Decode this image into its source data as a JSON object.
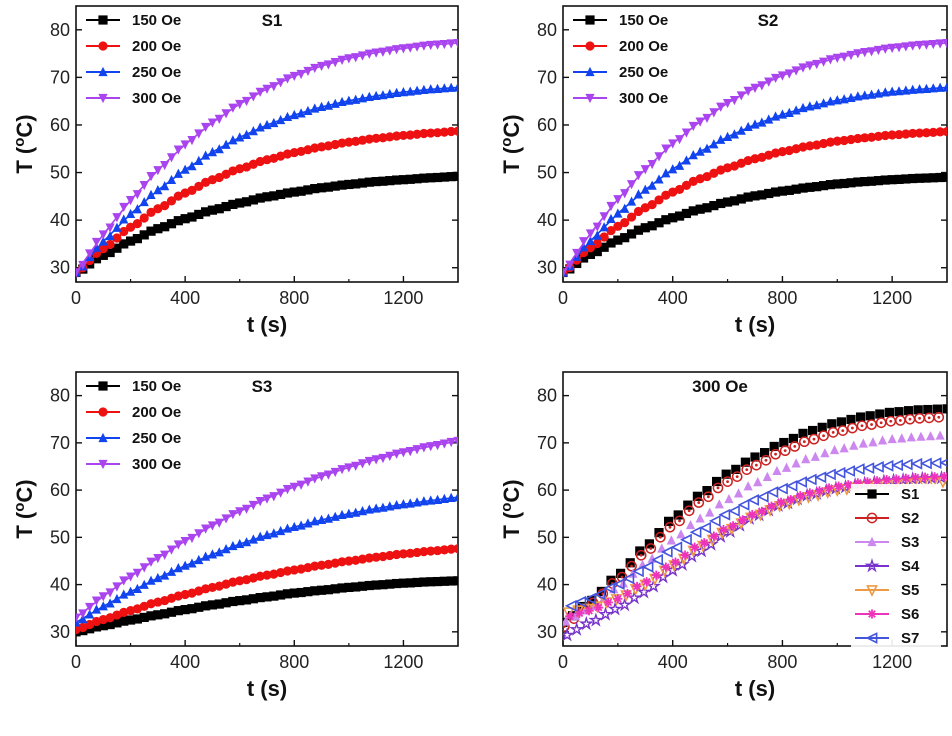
{
  "figure": {
    "panels": [
      "S1",
      "S2",
      "S3",
      "300 Oe"
    ]
  },
  "chart_data": [
    {
      "type": "line",
      "title": "S1",
      "xlabel": "t (s)",
      "ylabel": "T (oC)",
      "xlim": [
        0,
        1400
      ],
      "ylim": [
        27,
        85
      ],
      "xticks": [
        "0",
        "400",
        "800",
        "1200"
      ],
      "yticks": [
        "30",
        "40",
        "50",
        "60",
        "70",
        "80"
      ],
      "legend_position": "top-left",
      "grid": false,
      "series": [
        {
          "name": "150 Oe",
          "color": "#000000",
          "marker": "square",
          "x": [
            0,
            100,
            200,
            300,
            400,
            500,
            600,
            700,
            800,
            900,
            1000,
            1100,
            1200,
            1300,
            1400
          ],
          "y": [
            29,
            32.6,
            35.6,
            38.2,
            40.3,
            42.1,
            43.6,
            44.9,
            45.9,
            46.8,
            47.5,
            48.1,
            48.5,
            48.9,
            49.2
          ]
        },
        {
          "name": "200 Oe",
          "color": "#ee1111",
          "marker": "circle",
          "x": [
            0,
            100,
            200,
            300,
            400,
            500,
            600,
            700,
            800,
            900,
            1000,
            1100,
            1200,
            1300,
            1400
          ],
          "y": [
            29,
            34,
            38.5,
            42.4,
            45.7,
            48.5,
            50.8,
            52.7,
            54.2,
            55.4,
            56.4,
            57.2,
            57.8,
            58.3,
            58.7
          ]
        },
        {
          "name": "250 Oe",
          "color": "#1144ee",
          "marker": "triangle-up",
          "x": [
            0,
            100,
            200,
            300,
            400,
            500,
            600,
            700,
            800,
            900,
            1000,
            1100,
            1200,
            1300,
            1400
          ],
          "y": [
            29,
            35.5,
            41.3,
            46.3,
            50.6,
            54.3,
            57.4,
            60,
            62.1,
            63.8,
            65.1,
            66.1,
            66.9,
            67.5,
            67.9
          ]
        },
        {
          "name": "300 Oe",
          "color": "#aa44ee",
          "marker": "triangle-down",
          "x": [
            0,
            100,
            200,
            300,
            400,
            500,
            600,
            700,
            800,
            900,
            1000,
            1100,
            1200,
            1300,
            1400
          ],
          "y": [
            29,
            37,
            44.2,
            50.5,
            55.9,
            60.5,
            64.4,
            67.6,
            70.3,
            72.4,
            74,
            75.2,
            76.1,
            76.8,
            77.2
          ]
        }
      ]
    },
    {
      "type": "line",
      "title": "S2",
      "xlabel": "t (s)",
      "ylabel": "T (oC)",
      "xlim": [
        0,
        1400
      ],
      "ylim": [
        27,
        85
      ],
      "xticks": [
        "0",
        "400",
        "800",
        "1200"
      ],
      "yticks": [
        "30",
        "40",
        "50",
        "60",
        "70",
        "80"
      ],
      "legend_position": "top-left",
      "grid": false,
      "series": [
        {
          "name": "150 Oe",
          "color": "#000000",
          "marker": "square",
          "x": [
            0,
            100,
            200,
            300,
            400,
            500,
            600,
            700,
            800,
            900,
            1000,
            1100,
            1200,
            1300,
            1400
          ],
          "y": [
            29,
            32.8,
            35.8,
            38.4,
            40.5,
            42.3,
            43.8,
            45.1,
            46.1,
            46.9,
            47.6,
            48.1,
            48.5,
            48.8,
            49
          ]
        },
        {
          "name": "200 Oe",
          "color": "#ee1111",
          "marker": "circle",
          "x": [
            0,
            100,
            200,
            300,
            400,
            500,
            600,
            700,
            800,
            900,
            1000,
            1100,
            1200,
            1300,
            1400
          ],
          "y": [
            29,
            34.2,
            38.7,
            42.6,
            45.9,
            48.7,
            51,
            52.9,
            54.4,
            55.6,
            56.6,
            57.3,
            57.9,
            58.3,
            58.6
          ]
        },
        {
          "name": "250 Oe",
          "color": "#1144ee",
          "marker": "triangle-up",
          "x": [
            0,
            100,
            200,
            300,
            400,
            500,
            600,
            700,
            800,
            900,
            1000,
            1100,
            1200,
            1300,
            1400
          ],
          "y": [
            29,
            35.6,
            41.4,
            46.4,
            50.7,
            54.4,
            57.5,
            60.1,
            62.2,
            63.9,
            65.2,
            66.2,
            67,
            67.5,
            67.9
          ]
        },
        {
          "name": "300 Oe",
          "color": "#aa44ee",
          "marker": "triangle-down",
          "x": [
            0,
            100,
            200,
            300,
            400,
            500,
            600,
            700,
            800,
            900,
            1000,
            1100,
            1200,
            1300,
            1400
          ],
          "y": [
            29,
            37.2,
            44.4,
            50.7,
            56.1,
            60.7,
            64.6,
            67.8,
            70.4,
            72.5,
            74.1,
            75.3,
            76.2,
            76.8,
            77.2
          ]
        }
      ]
    },
    {
      "type": "line",
      "title": "S3",
      "xlabel": "t (s)",
      "ylabel": "T (oC)",
      "xlim": [
        0,
        1400
      ],
      "ylim": [
        27,
        85
      ],
      "xticks": [
        "0",
        "400",
        "800",
        "1200"
      ],
      "yticks": [
        "30",
        "40",
        "50",
        "60",
        "70",
        "80"
      ],
      "legend_position": "top-left",
      "grid": false,
      "series": [
        {
          "name": "150 Oe",
          "color": "#000000",
          "marker": "square",
          "x": [
            0,
            100,
            200,
            300,
            400,
            500,
            600,
            700,
            800,
            900,
            1000,
            1100,
            1200,
            1300,
            1400
          ],
          "y": [
            30,
            31.3,
            32.5,
            33.6,
            34.7,
            35.7,
            36.6,
            37.4,
            38.2,
            38.8,
            39.4,
            39.9,
            40.3,
            40.6,
            40.8
          ]
        },
        {
          "name": "200 Oe",
          "color": "#ee1111",
          "marker": "circle",
          "x": [
            0,
            100,
            200,
            300,
            400,
            500,
            600,
            700,
            800,
            900,
            1000,
            1100,
            1200,
            1300,
            1400
          ],
          "y": [
            30.5,
            32.6,
            34.5,
            36.3,
            37.9,
            39.4,
            40.8,
            42,
            43.1,
            44.1,
            45,
            45.8,
            46.5,
            47.1,
            47.6
          ]
        },
        {
          "name": "250 Oe",
          "color": "#1144ee",
          "marker": "triangle-up",
          "x": [
            0,
            100,
            200,
            300,
            400,
            500,
            600,
            700,
            800,
            900,
            1000,
            1100,
            1200,
            1300,
            1400
          ],
          "y": [
            32,
            35.4,
            38.5,
            41.4,
            44,
            46.4,
            48.6,
            50.5,
            52.2,
            53.7,
            55,
            56.1,
            57,
            57.8,
            58.5
          ]
        },
        {
          "name": "300 Oe",
          "color": "#aa44ee",
          "marker": "triangle-down",
          "x": [
            0,
            100,
            200,
            300,
            400,
            500,
            600,
            700,
            800,
            900,
            1000,
            1100,
            1200,
            1300,
            1400
          ],
          "y": [
            33,
            37.5,
            41.7,
            45.6,
            49.2,
            52.5,
            55.5,
            58.2,
            60.7,
            62.9,
            64.8,
            66.5,
            68,
            69.3,
            70.4
          ]
        }
      ]
    },
    {
      "type": "scatter",
      "title": "300 Oe",
      "xlabel": "t (s)",
      "ylabel": "T (oC)",
      "xlim": [
        0,
        1400
      ],
      "ylim": [
        27,
        85
      ],
      "xticks": [
        "0",
        "400",
        "800",
        "1200"
      ],
      "yticks": [
        "30",
        "40",
        "50",
        "60",
        "70",
        "80"
      ],
      "legend_position": "bottom-right",
      "grid": false,
      "series": [
        {
          "name": "S1",
          "color": "#000000",
          "marker": "square-filled",
          "x": [
            0,
            100,
            200,
            300,
            400,
            500,
            600,
            700,
            800,
            900,
            1000,
            1100,
            1200,
            1300,
            1400
          ],
          "y": [
            32,
            36.5,
            42,
            48,
            54,
            59,
            63.5,
            67,
            70,
            72.5,
            74.3,
            75.6,
            76.5,
            77,
            77.2
          ]
        },
        {
          "name": "S2",
          "color": "#cc2222",
          "marker": "circle-dotted",
          "x": [
            0,
            100,
            200,
            300,
            400,
            500,
            600,
            700,
            800,
            900,
            1000,
            1100,
            1200,
            1300,
            1400
          ],
          "y": [
            31,
            35.8,
            41,
            46.8,
            52.5,
            57.5,
            61.8,
            65.2,
            68.2,
            70.6,
            72.4,
            73.7,
            74.6,
            75.2,
            75.5
          ]
        },
        {
          "name": "S3",
          "color": "#cc88ee",
          "marker": "triangle-up-filled",
          "x": [
            0,
            100,
            200,
            300,
            400,
            500,
            600,
            700,
            800,
            900,
            1000,
            1100,
            1200,
            1300,
            1400
          ],
          "y": [
            32,
            35,
            39.5,
            44.5,
            49.5,
            54,
            58,
            61.5,
            64.5,
            66.8,
            68.6,
            69.9,
            70.8,
            71.3,
            71.6
          ]
        },
        {
          "name": "S4",
          "color": "#7733cc",
          "marker": "star",
          "x": [
            0,
            100,
            200,
            300,
            400,
            500,
            600,
            700,
            800,
            900,
            1000,
            1100,
            1200,
            1300,
            1400
          ],
          "y": [
            29,
            32,
            35,
            38.5,
            43,
            47,
            51,
            54.5,
            57,
            59,
            60.4,
            61.4,
            62,
            62.4,
            62.6
          ]
        },
        {
          "name": "S5",
          "color": "#ee9944",
          "marker": "triangle-down-open",
          "x": [
            0,
            100,
            200,
            300,
            400,
            500,
            600,
            700,
            800,
            900,
            1000,
            1100,
            1200,
            1300,
            1400
          ],
          "y": [
            34,
            35,
            37,
            40,
            44,
            48,
            51.5,
            54.5,
            56.8,
            58.6,
            60,
            60.8,
            61.3,
            61.6,
            61.8
          ]
        },
        {
          "name": "S6",
          "color": "#ee33bb",
          "marker": "asterisk",
          "x": [
            0,
            100,
            200,
            300,
            400,
            500,
            600,
            700,
            800,
            900,
            1000,
            1100,
            1200,
            1300,
            1400
          ],
          "y": [
            33,
            34.5,
            37,
            40.5,
            44.5,
            48.5,
            52,
            55,
            57.5,
            59.4,
            60.8,
            61.7,
            62.3,
            62.7,
            62.9
          ]
        },
        {
          "name": "S7",
          "color": "#4455dd",
          "marker": "triangle-left-open",
          "x": [
            0,
            100,
            200,
            300,
            400,
            500,
            600,
            700,
            800,
            900,
            1000,
            1100,
            1200,
            1300,
            1400
          ],
          "y": [
            35,
            37,
            40,
            43.5,
            47.5,
            51.5,
            55,
            58,
            60.3,
            62.2,
            63.6,
            64.6,
            65.2,
            65.6,
            65.8
          ]
        }
      ]
    }
  ]
}
